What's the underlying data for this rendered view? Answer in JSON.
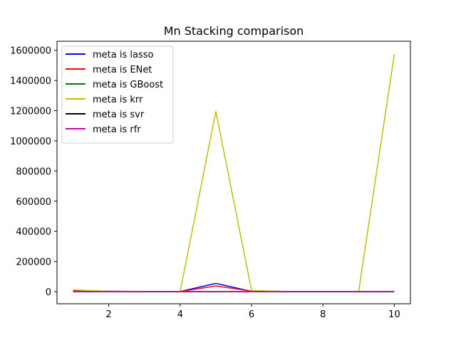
{
  "chart_data": {
    "type": "line",
    "title": "Mn Stacking comparison",
    "xlabel": "",
    "ylabel": "",
    "x": [
      1,
      2,
      3,
      4,
      5,
      6,
      7,
      8,
      9,
      10
    ],
    "xlim": [
      0.55,
      10.45
    ],
    "ylim": [
      -80000,
      1660000
    ],
    "xticks": [
      2,
      4,
      6,
      8,
      10
    ],
    "yticks": [
      0,
      200000,
      400000,
      600000,
      800000,
      1000000,
      1200000,
      1400000,
      1600000
    ],
    "grid": false,
    "legend_position": "top-left",
    "series": [
      {
        "name": "meta is lasso",
        "color": "#0000ff",
        "values": [
          2000,
          1500,
          1000,
          1000,
          55000,
          2000,
          1000,
          1000,
          1000,
          1000
        ]
      },
      {
        "name": "meta is ENet",
        "color": "#ff0000",
        "values": [
          8000,
          3000,
          1000,
          1000,
          38000,
          4000,
          1000,
          1000,
          1000,
          1000
        ]
      },
      {
        "name": "meta is GBoost",
        "color": "#008000",
        "values": [
          1000,
          1000,
          1000,
          1000,
          1000,
          1000,
          1000,
          1000,
          1000,
          1000
        ]
      },
      {
        "name": "meta is krr",
        "color": "#bfbf00",
        "values": [
          12000,
          2000,
          1000,
          1000,
          1195000,
          8000,
          1000,
          1000,
          1000,
          1575000
        ]
      },
      {
        "name": "meta is svr",
        "color": "#000000",
        "values": [
          0,
          0,
          0,
          0,
          0,
          0,
          0,
          0,
          0,
          0
        ]
      },
      {
        "name": "meta is rfr",
        "color": "#bf00bf",
        "values": [
          1000,
          1000,
          1000,
          1000,
          1000,
          1000,
          1000,
          1000,
          1000,
          1000
        ]
      }
    ]
  }
}
